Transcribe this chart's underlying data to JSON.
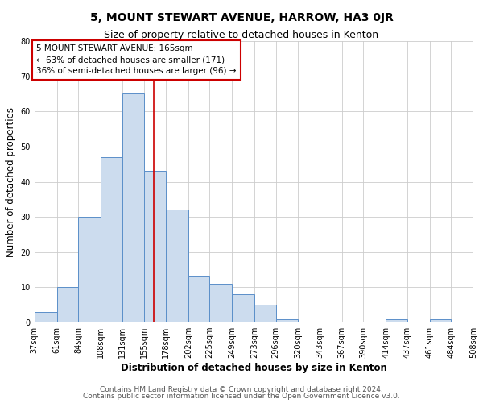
{
  "title": "5, MOUNT STEWART AVENUE, HARROW, HA3 0JR",
  "subtitle": "Size of property relative to detached houses in Kenton",
  "xlabel": "Distribution of detached houses by size in Kenton",
  "ylabel": "Number of detached properties",
  "bin_edges": [
    37,
    61,
    84,
    108,
    131,
    155,
    178,
    202,
    225,
    249,
    273,
    296,
    320,
    343,
    367,
    390,
    414,
    437,
    461,
    484,
    508
  ],
  "counts": [
    3,
    10,
    30,
    47,
    65,
    43,
    32,
    13,
    11,
    8,
    5,
    1,
    0,
    0,
    0,
    0,
    1,
    0,
    1,
    0
  ],
  "bar_color": "#ccdcee",
  "bar_edge_color": "#5b8fc9",
  "property_size": 165,
  "vline_color": "#cc0000",
  "annotation_text": "5 MOUNT STEWART AVENUE: 165sqm\n← 63% of detached houses are smaller (171)\n36% of semi-detached houses are larger (96) →",
  "annotation_box_color": "white",
  "annotation_box_edge_color": "#cc0000",
  "ylim": [
    0,
    80
  ],
  "yticks": [
    0,
    10,
    20,
    30,
    40,
    50,
    60,
    70,
    80
  ],
  "plot_bg_color": "#ffffff",
  "fig_bg_color": "#ffffff",
  "grid_color": "#cccccc",
  "footer_line1": "Contains HM Land Registry data © Crown copyright and database right 2024.",
  "footer_line2": "Contains public sector information licensed under the Open Government Licence v3.0.",
  "title_fontsize": 10,
  "subtitle_fontsize": 9,
  "axis_label_fontsize": 8.5,
  "tick_fontsize": 7,
  "footer_fontsize": 6.5,
  "annotation_fontsize": 7.5
}
